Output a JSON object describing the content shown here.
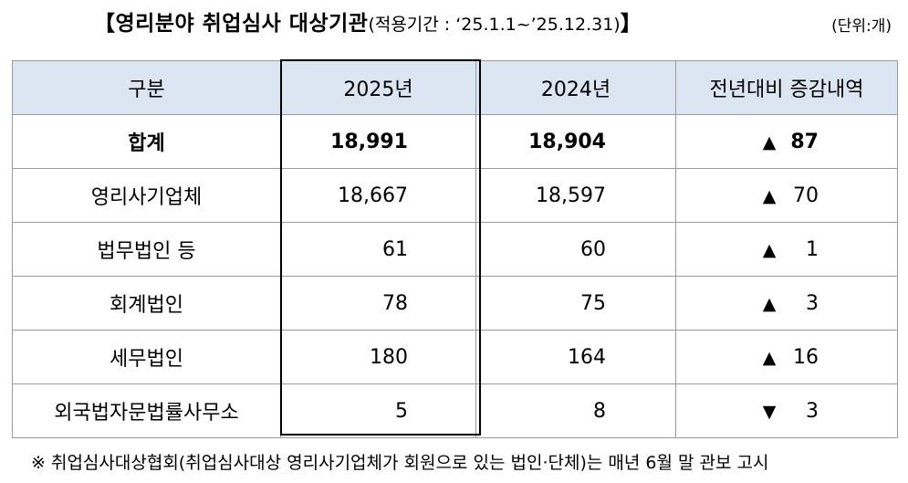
{
  "title": {
    "main": "【영리분야 취업심사 대상기관",
    "period": "(적용기간 : ‘25.1.1~’25.12.31)",
    "close": "】"
  },
  "unit": "(단위:개)",
  "table": {
    "headers": [
      "구분",
      "2025년",
      "2024년",
      "전년대비 증감내역"
    ],
    "rows": [
      {
        "category": "합계",
        "y2025": "18,991",
        "y2024": "18,904",
        "arrow": "▲",
        "diff": "87"
      },
      {
        "category": "영리사기업체",
        "y2025": "18,667",
        "y2024": "18,597",
        "arrow": "▲",
        "diff": "70"
      },
      {
        "category": "법무법인 등",
        "y2025": "61",
        "y2024": "60",
        "arrow": "▲",
        "diff": "1"
      },
      {
        "category": "회계법인",
        "y2025": "78",
        "y2024": "75",
        "arrow": "▲",
        "diff": "3"
      },
      {
        "category": "세무법인",
        "y2025": "180",
        "y2024": "164",
        "arrow": "▲",
        "diff": "16"
      },
      {
        "category": "외국법자문법률사무소",
        "y2025": "5",
        "y2024": "8",
        "arrow": "▼",
        "diff": "3"
      }
    ]
  },
  "footnote": "※ 취업심사대상협회(취업심사대상 영리사기업체가 회원으로 있는 법인·단체)는 매년 6월 말 관보 고시"
}
